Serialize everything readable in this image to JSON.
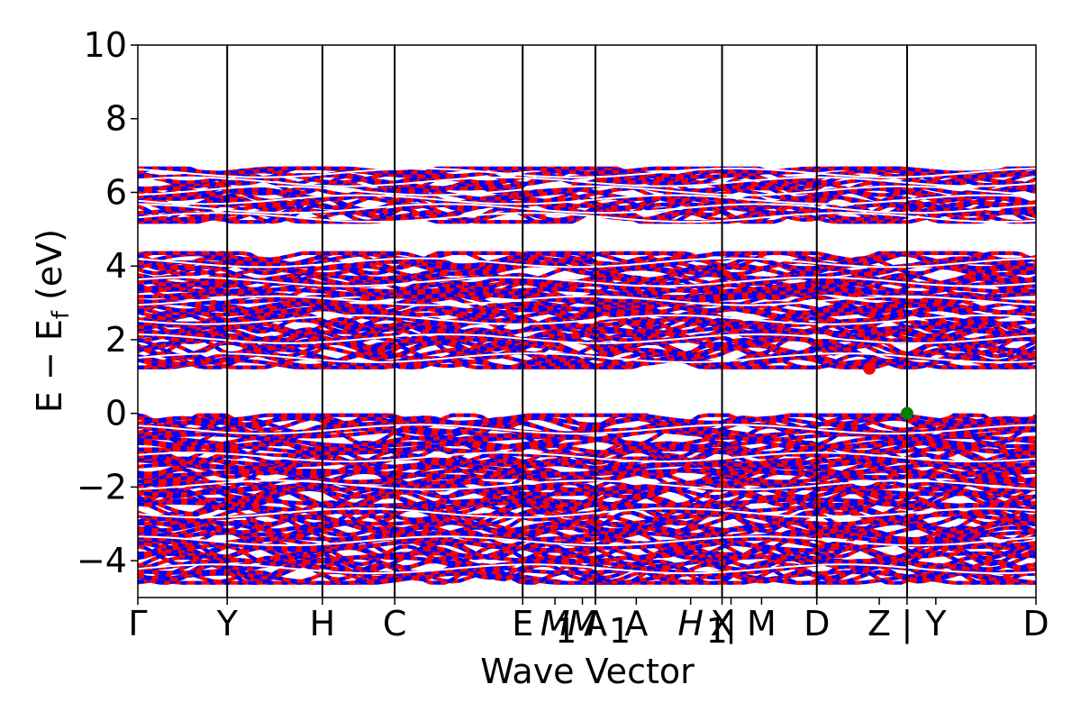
{
  "chart_data": {
    "type": "line",
    "title": "",
    "xlabel": "Wave Vector",
    "ylabel": "E − E",
    "ylabel_sub": "f",
    "ylabel_unit": " (eV)",
    "ylim": [
      -5,
      10
    ],
    "yticks": [
      10,
      8,
      6,
      4,
      2,
      0,
      -2,
      -4
    ],
    "ytick_labels": [
      "10",
      "8",
      "6",
      "4",
      "2",
      "0",
      "−2",
      "−4"
    ],
    "grid": false,
    "legend": "none",
    "kpath_segments": [
      {
        "labels": [
          "Γ",
          "Y",
          "H",
          "C",
          "E",
          "M₁",
          "A",
          "X"
        ],
        "xpos": [
          0.0,
          0.0995,
          0.2055,
          0.286,
          0.4285,
          0.5095,
          0.5095,
          0.6505
        ]
      },
      {
        "labels": [
          "H₁",
          "X"
        ],
        "xpos": [
          0.6505,
          0.6505
        ]
      },
      {
        "labels": [
          "M",
          "D",
          "Z"
        ],
        "xpos": [
          0.6505,
          0.756,
          0.8565
        ]
      },
      {
        "labels": [
          "Y",
          "D"
        ],
        "xpos": [
          0.8565,
          1.0
        ]
      }
    ],
    "kpoint_labels": [
      {
        "text": "Γ",
        "x": 0.0
      },
      {
        "text": "Y",
        "x": 0.0995
      },
      {
        "text": "H",
        "x": 0.2055
      },
      {
        "text": "C",
        "x": 0.286
      },
      {
        "text": "E",
        "x": 0.4285
      },
      {
        "text": "M",
        "x": 0.4645,
        "italic": true
      },
      {
        "text": "M",
        "x": 0.495,
        "italic": true
      },
      {
        "text": "1",
        "x": 0.4645,
        "sub": true
      },
      {
        "text": "A",
        "x": 0.5095
      },
      {
        "text": "A",
        "x": 0.5095
      },
      {
        "text": "1",
        "x": 0.5245,
        "sub": true
      },
      {
        "text": "A",
        "x": 0.555
      },
      {
        "text": "H",
        "x": 0.6155,
        "italic": true
      },
      {
        "text": "1",
        "x": 0.6325,
        "sub": true
      },
      {
        "text": "X",
        "x": 0.6505
      },
      {
        "text": "|",
        "x": 0.6605
      },
      {
        "text": "M",
        "x": 0.6945
      },
      {
        "text": "D",
        "x": 0.756
      },
      {
        "text": "Z",
        "x": 0.8255
      },
      {
        "text": "|",
        "x": 0.8565
      },
      {
        "text": "Y",
        "x": 0.8885
      },
      {
        "text": "D",
        "x": 1.0
      }
    ],
    "high_symmetry_x": [
      0.0995,
      0.2055,
      0.286,
      0.4285,
      0.5095,
      0.6505,
      0.756,
      0.8565
    ],
    "band_groups": [
      {
        "name": "conduction-upper",
        "emin": 5.2,
        "emax": 6.65
      },
      {
        "name": "conduction-lower",
        "emin": 1.25,
        "emax": 4.35
      },
      {
        "name": "valence",
        "emin": -4.6,
        "emax": -0.05
      }
    ],
    "projection_colors": [
      "#ff0000",
      "#0000ff"
    ],
    "cbm": {
      "x": 0.8145,
      "y": 1.22,
      "color": "#ff0000"
    },
    "vbm": {
      "x": 0.8565,
      "y": 0.0,
      "color": "#008000"
    }
  }
}
